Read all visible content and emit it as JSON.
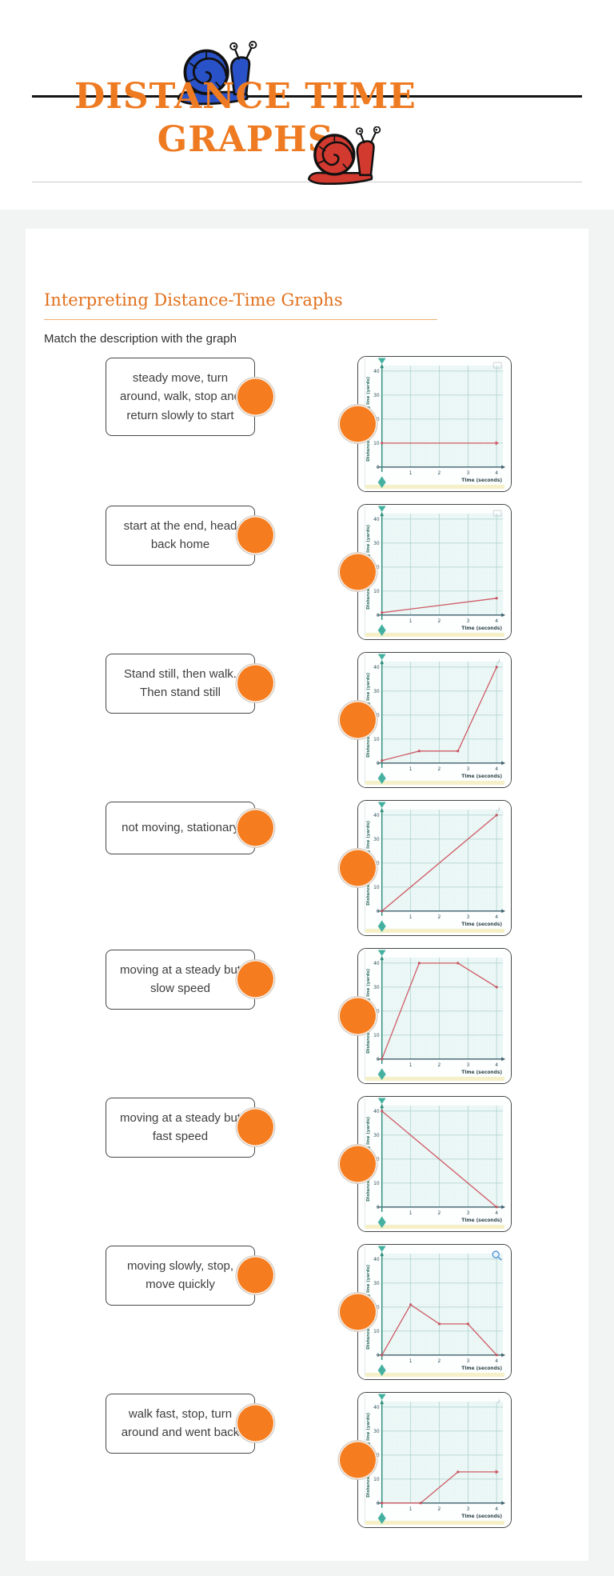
{
  "header": {
    "title_line1": "DISTANCE TIME",
    "title_line2": "GRAPHS"
  },
  "section": {
    "title": "Interpreting Distance-Time Graphs",
    "instruction": "Match the description with the graph"
  },
  "colors": {
    "title_orange": "#ee7b22",
    "circle_orange": "#f57d20",
    "line_red": "#cf5a66",
    "axis_teal": "#2f8f7e",
    "snail_blue": "#2a52c8",
    "snail_red": "#d23a30"
  },
  "rows": [
    {
      "description": "steady move, turn around, walk, stop and return slowly to start"
    },
    {
      "description": "start at the end, head back home"
    },
    {
      "description": "Stand still, then walk. Then stand still"
    },
    {
      "description": "not moving, stationary"
    },
    {
      "description": "moving at a steady but slow speed"
    },
    {
      "description": "moving at a steady but fast speed"
    },
    {
      "description": "moving slowly, stop, move quickly"
    },
    {
      "description": "walk fast, stop, turn around and went back"
    }
  ],
  "axis": {
    "xlabel": "Time (seconds)",
    "ylabel": "Distance from starting line (yards)",
    "xticks": [
      1,
      2,
      3,
      4
    ],
    "yticks": [
      0,
      10,
      20,
      30,
      40
    ],
    "xlim": [
      0,
      4
    ],
    "ylim": [
      0,
      40
    ],
    "grid": "on"
  },
  "chart_data": [
    {
      "type": "line",
      "x": [
        0,
        4
      ],
      "y": [
        10,
        10
      ],
      "arrow_end": true,
      "corner_icon": "box"
    },
    {
      "type": "line",
      "x": [
        0,
        4
      ],
      "y": [
        1,
        7
      ],
      "arrow_end": false,
      "corner_icon": "box"
    },
    {
      "type": "line",
      "x": [
        0,
        1.3,
        2.65,
        4
      ],
      "y": [
        1,
        5,
        5,
        40
      ],
      "arrow_end": false,
      "corner_icon": "info"
    },
    {
      "type": "line",
      "x": [
        0,
        4
      ],
      "y": [
        0,
        40
      ],
      "arrow_end": false,
      "corner_icon": "info"
    },
    {
      "type": "line",
      "x": [
        0,
        1.3,
        2.65,
        4
      ],
      "y": [
        0,
        40,
        40,
        30
      ],
      "arrow_end": false,
      "corner_icon": "none"
    },
    {
      "type": "line",
      "x": [
        0,
        4
      ],
      "y": [
        40,
        0
      ],
      "arrow_end": false,
      "corner_icon": "none"
    },
    {
      "type": "line",
      "x": [
        0,
        1,
        2,
        3,
        4
      ],
      "y": [
        0,
        21,
        13,
        13,
        0
      ],
      "arrow_end": false,
      "corner_icon": "magnifier"
    },
    {
      "type": "line",
      "x": [
        0,
        1.35,
        2.65,
        4
      ],
      "y": [
        0,
        0,
        13,
        13
      ],
      "arrow_end": true,
      "corner_icon": "info"
    }
  ]
}
